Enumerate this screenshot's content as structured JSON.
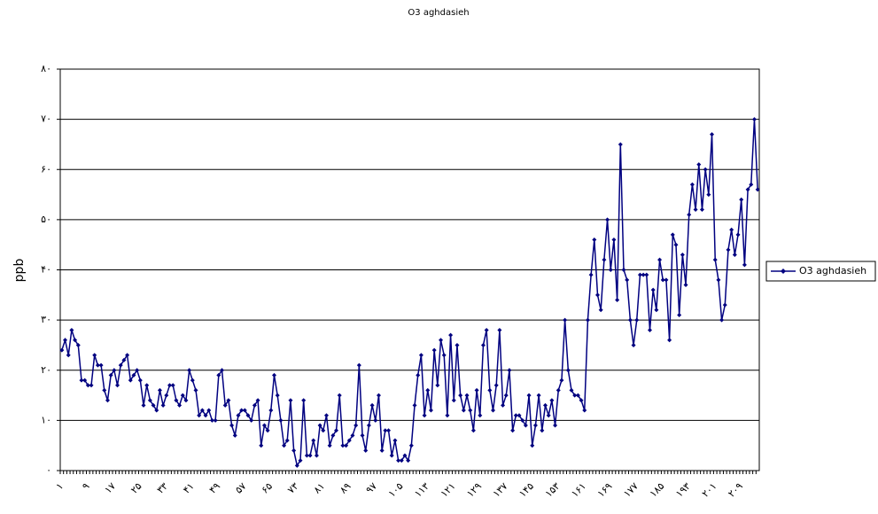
{
  "chart_data": {
    "type": "line",
    "title": "O3 aghdasieh",
    "y_label": "ppb",
    "categories": [
      "۱",
      null,
      null,
      null,
      null,
      null,
      null,
      null,
      "۹",
      null,
      null,
      null,
      null,
      null,
      null,
      null,
      "۱۷",
      null,
      null,
      null,
      null,
      null,
      null,
      null,
      "۲۵",
      null,
      null,
      null,
      null,
      null,
      null,
      null,
      "۳۳",
      null,
      null,
      null,
      null,
      null,
      null,
      null,
      "۴۱",
      null,
      null,
      null,
      null,
      null,
      null,
      null,
      "۴۹",
      null,
      null,
      null,
      null,
      null,
      null,
      null,
      "۵۷",
      null,
      null,
      null,
      null,
      null,
      null,
      null,
      "۶۵",
      null,
      null,
      null,
      null,
      null,
      null,
      null,
      "۷۳",
      null,
      null,
      null,
      null,
      null,
      null,
      null,
      "۸۱",
      null,
      null,
      null,
      null,
      null,
      null,
      null,
      "۸۹",
      null,
      null,
      null,
      null,
      null,
      null,
      null,
      "۹۷",
      null,
      null,
      null,
      null,
      null,
      null,
      null,
      "۱۰۵",
      null,
      null,
      null,
      null,
      null,
      null,
      null,
      "۱۱۳",
      null,
      null,
      null,
      null,
      null,
      null,
      null,
      "۱۲۱",
      null,
      null,
      null,
      null,
      null,
      null,
      null,
      "۱۲۹",
      null,
      null,
      null,
      null,
      null,
      null,
      null,
      "۱۳۷",
      null,
      null,
      null,
      null,
      null,
      null,
      null,
      "۱۴۵",
      null,
      null,
      null,
      null,
      null,
      null,
      null,
      "۱۵۳",
      null,
      null,
      null,
      null,
      null,
      null,
      null,
      "۱۶۱",
      null,
      null,
      null,
      null,
      null,
      null,
      null,
      "۱۶۹",
      null,
      null,
      null,
      null,
      null,
      null,
      null,
      "۱۷۷",
      null,
      null,
      null,
      null,
      null,
      null,
      null,
      "۱۸۵",
      null,
      null,
      null,
      null,
      null,
      null,
      null,
      "۱۹۳",
      null,
      null,
      null,
      null,
      null,
      null,
      null,
      "۲۰۱",
      null,
      null,
      null,
      null,
      null,
      null,
      null,
      "۲۰۹",
      null,
      null,
      null,
      null,
      null
    ],
    "series": [
      {
        "name": "O3 aghdasieh",
        "color": "#000080",
        "values": [
          24,
          26,
          23,
          28,
          26,
          25,
          18,
          18,
          17,
          17,
          23,
          21,
          21,
          16,
          14,
          19,
          20,
          17,
          21,
          22,
          23,
          18,
          19,
          20,
          18,
          13,
          17,
          14,
          13,
          12,
          16,
          13,
          15,
          17,
          17,
          14,
          13,
          15,
          14,
          20,
          18,
          16,
          11,
          12,
          11,
          12,
          10,
          10,
          19,
          20,
          13,
          14,
          9,
          7,
          11,
          12,
          12,
          11,
          10,
          13,
          14,
          5,
          9,
          8,
          12,
          19,
          15,
          10,
          5,
          6,
          14,
          4,
          1,
          2,
          14,
          3,
          3,
          6,
          3,
          9,
          8,
          11,
          5,
          7,
          8,
          15,
          5,
          5,
          6,
          7,
          9,
          21,
          7,
          4,
          9,
          13,
          10,
          15,
          4,
          8,
          8,
          3,
          6,
          2,
          2,
          3,
          2,
          5,
          13,
          19,
          23,
          11,
          16,
          12,
          24,
          17,
          26,
          23,
          11,
          27,
          14,
          25,
          15,
          12,
          15,
          12,
          8,
          16,
          11,
          25,
          28,
          16,
          12,
          17,
          28,
          13,
          15,
          20,
          8,
          11,
          11,
          10,
          9,
          15,
          5,
          9,
          15,
          8,
          13,
          11,
          14,
          9,
          16,
          18,
          30,
          20,
          16,
          15,
          15,
          14,
          12,
          30,
          39,
          46,
          35,
          32,
          42,
          50,
          40,
          46,
          34,
          65,
          40,
          38,
          30,
          25,
          30,
          39,
          39,
          39,
          28,
          36,
          32,
          42,
          38,
          38,
          26,
          47,
          45,
          31,
          43,
          37,
          51,
          57,
          52,
          61,
          52,
          60,
          55,
          67,
          42,
          38,
          30,
          33,
          44,
          48,
          43,
          47,
          54,
          41,
          56,
          57,
          70,
          56
        ]
      }
    ],
    "ylim": [
      0,
      80
    ],
    "yticks": [
      {
        "value": 0,
        "label": "۰"
      },
      {
        "value": 10,
        "label": "۱۰"
      },
      {
        "value": 20,
        "label": "۲۰"
      },
      {
        "value": 30,
        "label": "۳۰"
      },
      {
        "value": 40,
        "label": "۴۰"
      },
      {
        "value": 50,
        "label": "۵۰"
      },
      {
        "value": 60,
        "label": "۶۰"
      },
      {
        "value": 70,
        "label": "۷۰"
      },
      {
        "value": 80,
        "label": "۸۰"
      }
    ],
    "grid": true,
    "legend": "right"
  }
}
